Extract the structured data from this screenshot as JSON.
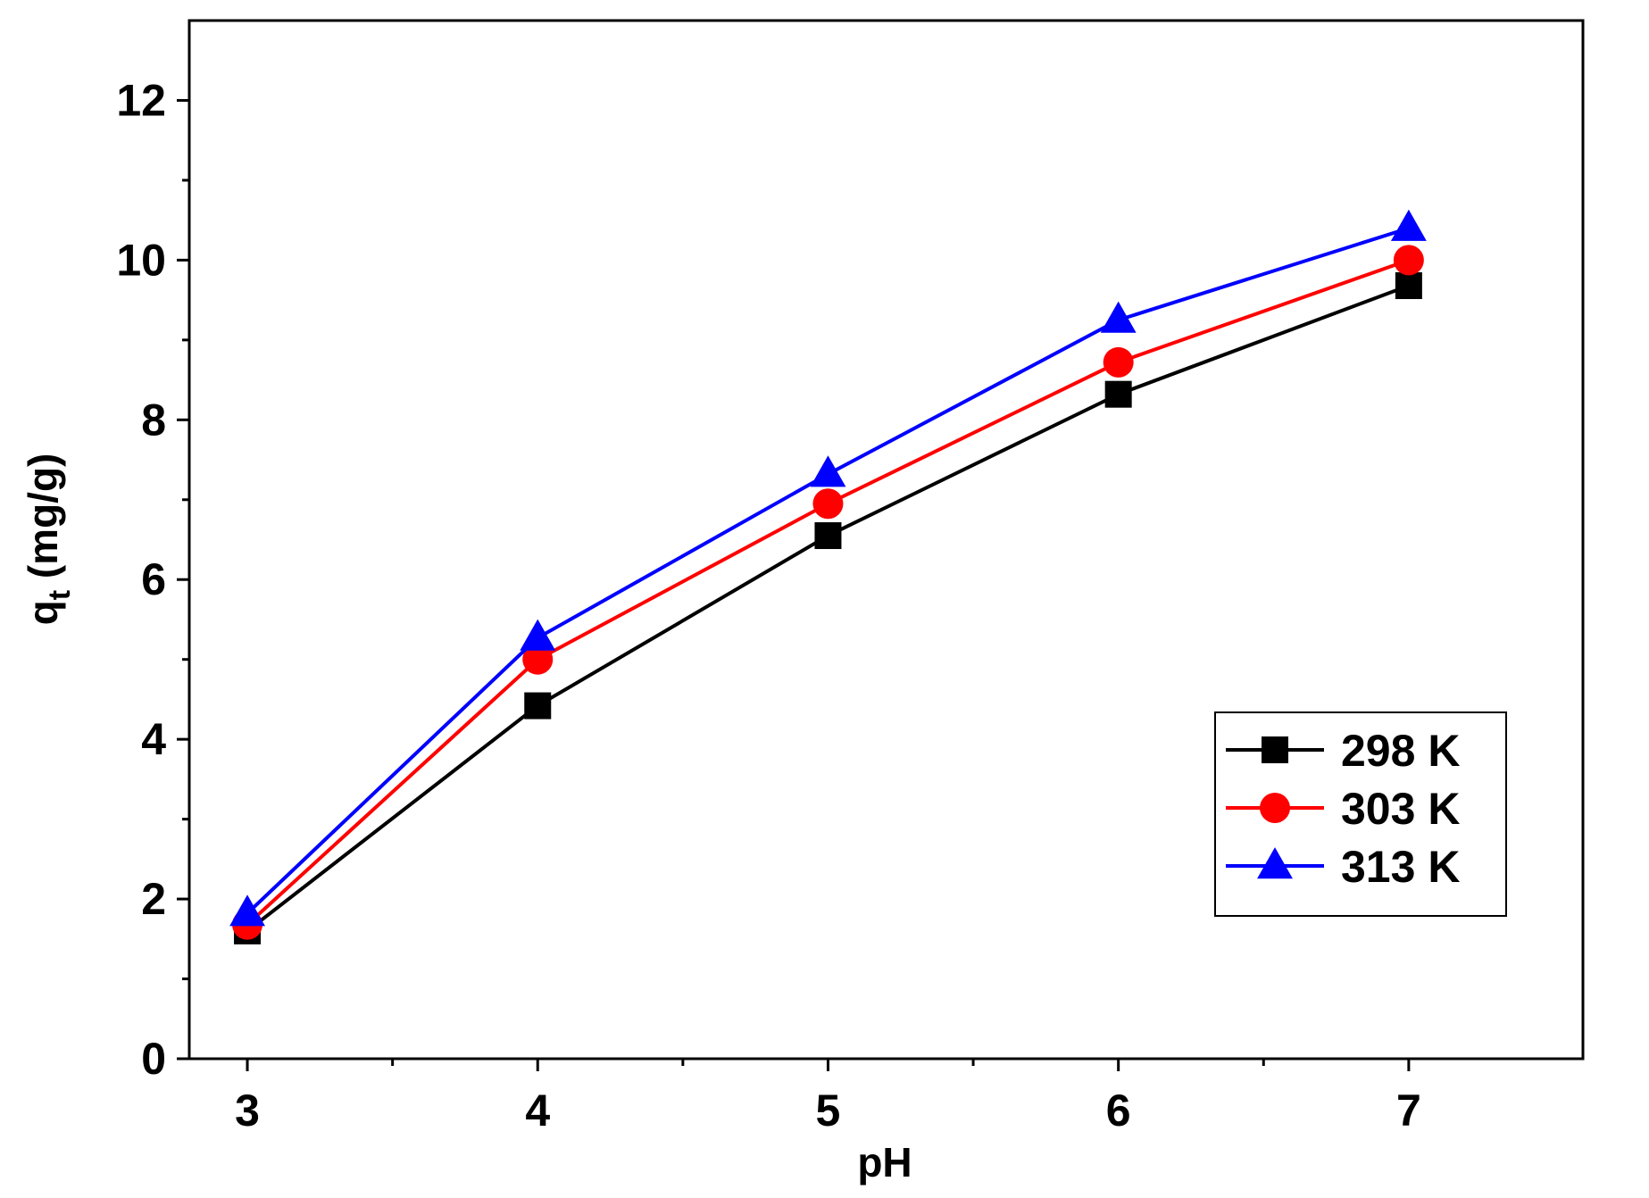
{
  "chart_data": {
    "type": "line",
    "xlabel": "pH",
    "ylabel_main": "q",
    "ylabel_sub": "t",
    "ylabel_unit": " (mg/g)",
    "xlim": [
      2.8,
      7.6
    ],
    "ylim": [
      0,
      13
    ],
    "x_ticks": [
      3,
      4,
      5,
      6,
      7
    ],
    "x_minor_ticks": [
      3.5,
      4.5,
      5.5,
      6.5
    ],
    "y_ticks": [
      0,
      2,
      4,
      6,
      8,
      10,
      12
    ],
    "y_minor_ticks": [
      1,
      3,
      5,
      7,
      9,
      11
    ],
    "x_tick_labels": [
      "3",
      "4",
      "5",
      "6",
      "7"
    ],
    "y_tick_labels": [
      "0",
      "2",
      "4",
      "6",
      "8",
      "10",
      "12"
    ],
    "grid": false,
    "legend_position": "bottom-right",
    "x": [
      3,
      4,
      5,
      6,
      7
    ],
    "series": [
      {
        "name": "298 K",
        "marker": "square",
        "color": "#000000",
        "values": [
          1.6,
          4.42,
          6.55,
          8.32,
          9.68
        ]
      },
      {
        "name": "303 K",
        "marker": "circle",
        "color": "#ff0000",
        "values": [
          1.68,
          5.0,
          6.95,
          8.72,
          10.0
        ]
      },
      {
        "name": "313 K",
        "marker": "triangle",
        "color": "#0000ff",
        "values": [
          1.82,
          5.27,
          7.32,
          9.25,
          10.4
        ]
      }
    ]
  }
}
